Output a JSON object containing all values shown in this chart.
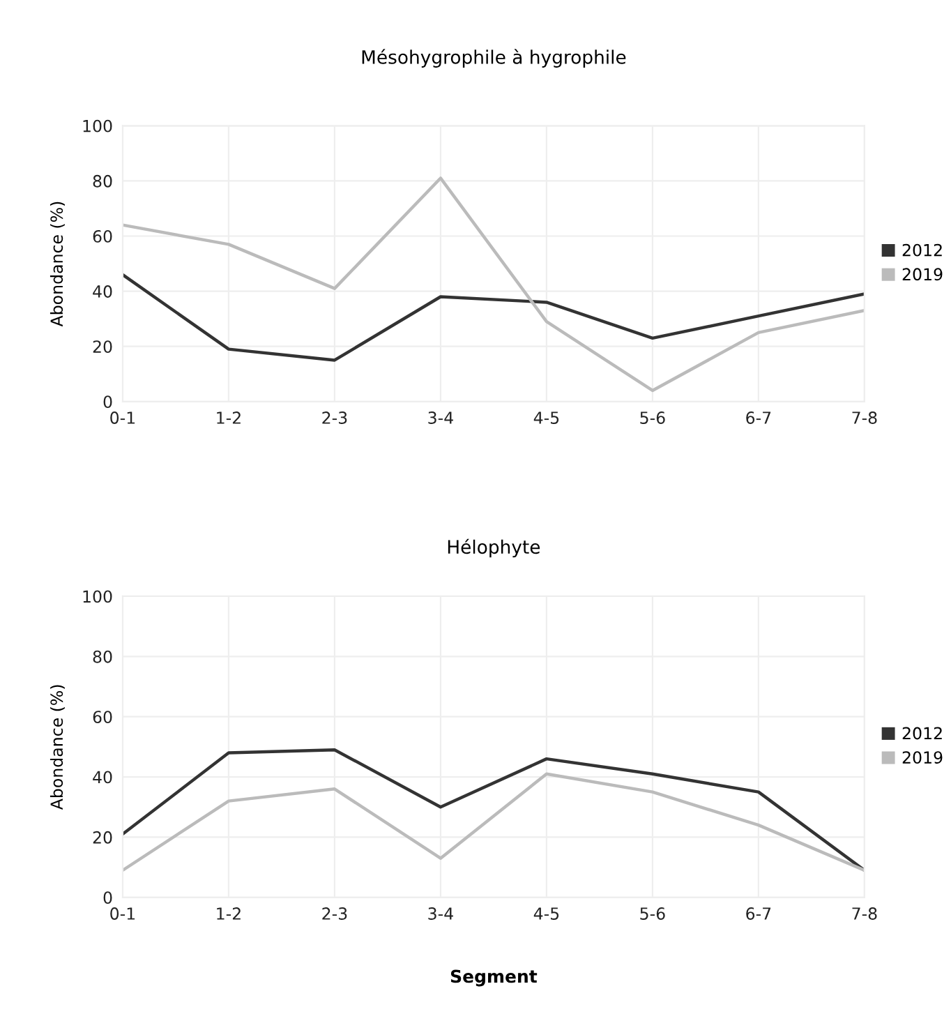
{
  "chart_data": [
    {
      "type": "line",
      "title": "Mésohygrophile à hygrophile",
      "ylabel": "Abondance (%)",
      "categories": [
        "0-1",
        "1-2",
        "2-3",
        "3-4",
        "4-5",
        "5-6",
        "6-7",
        "7-8"
      ],
      "series": [
        {
          "name": "2012",
          "color": "#333333",
          "values": [
            46,
            19,
            15,
            38,
            36,
            23,
            31,
            39
          ]
        },
        {
          "name": "2019",
          "color": "#bbbbbb",
          "values": [
            64,
            57,
            41,
            81,
            29,
            4,
            25,
            33
          ]
        }
      ],
      "ylim": [
        0,
        100
      ],
      "yticks": [
        0,
        20,
        40,
        60,
        80,
        100
      ],
      "grid": true,
      "legend": "right",
      "marker": "none",
      "line_style": "solid"
    },
    {
      "type": "line",
      "title": "Hélophyte",
      "ylabel": "Abondance (%)",
      "xlabel": "Segment",
      "categories": [
        "0-1",
        "1-2",
        "2-3",
        "3-4",
        "4-5",
        "5-6",
        "6-7",
        "7-8"
      ],
      "series": [
        {
          "name": "2012",
          "color": "#333333",
          "values": [
            21,
            48,
            49,
            30,
            46,
            41,
            35,
            9
          ]
        },
        {
          "name": "2019",
          "color": "#bbbbbb",
          "values": [
            9,
            32,
            36,
            13,
            41,
            35,
            24,
            9
          ]
        }
      ],
      "ylim": [
        0,
        100
      ],
      "yticks": [
        0,
        20,
        40,
        60,
        80,
        100
      ],
      "grid": true,
      "legend": "right",
      "marker": "none",
      "line_style": "solid"
    }
  ]
}
